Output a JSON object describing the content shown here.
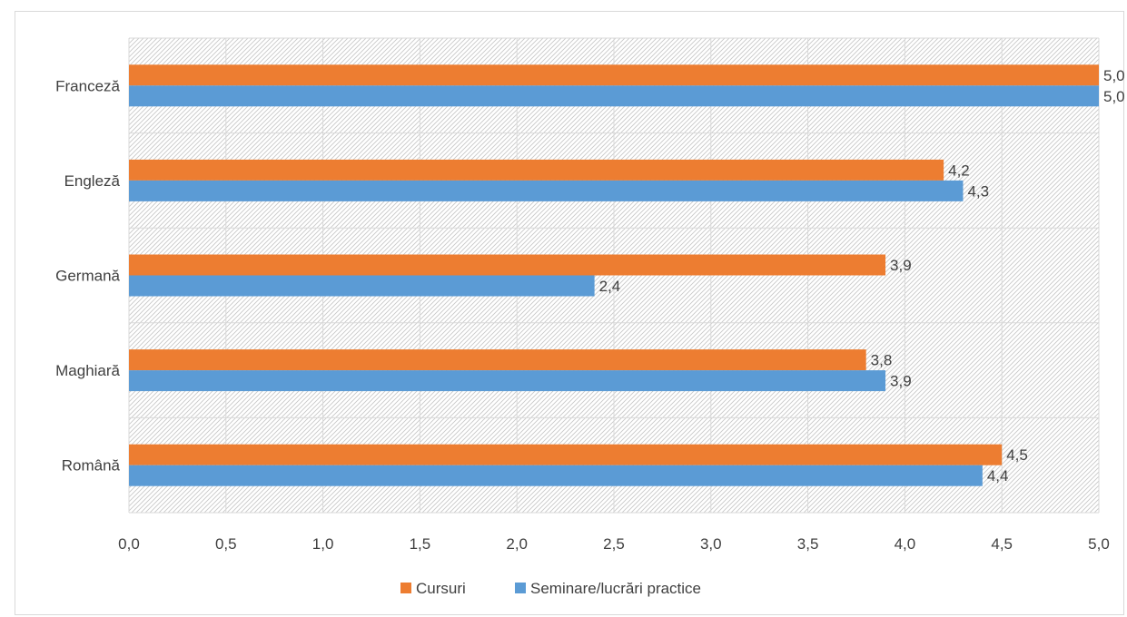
{
  "chart_data": {
    "type": "bar",
    "orientation": "horizontal",
    "categories": [
      "Română",
      "Maghiară",
      "Germană",
      "Engleză",
      "Franceză"
    ],
    "series": [
      {
        "name": "Cursuri",
        "color": "#ED7D31",
        "values": [
          4.5,
          3.8,
          3.9,
          4.2,
          5.0
        ],
        "labels": [
          "4,5",
          "3,8",
          "3,9",
          "4,2",
          "5,0"
        ]
      },
      {
        "name": "Seminare/lucrări practice",
        "color": "#5B9BD5",
        "values": [
          4.4,
          3.9,
          2.4,
          4.3,
          5.0
        ],
        "labels": [
          "4,4",
          "3,9",
          "2,4",
          "4,3",
          "5,0"
        ]
      }
    ],
    "xlim": [
      0,
      5
    ],
    "xticks": [
      0,
      0.5,
      1,
      1.5,
      2,
      2.5,
      3,
      3.5,
      4,
      4.5,
      5
    ],
    "xtick_labels": [
      "0,0",
      "0,5",
      "1,0",
      "1,5",
      "2,0",
      "2,5",
      "3,0",
      "3,5",
      "4,0",
      "4,5",
      "5,0"
    ],
    "grid": true,
    "legend": "bottom",
    "plot_background": "diagonal-hatch",
    "title": "",
    "xlabel": "",
    "ylabel": ""
  }
}
